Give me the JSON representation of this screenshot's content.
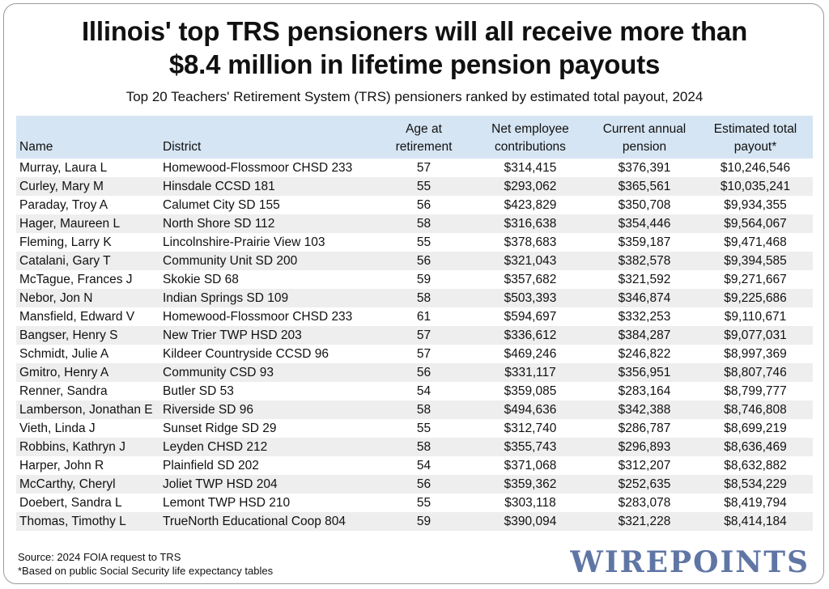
{
  "title_line1": "Illinois' top TRS pensioners will all receive more than",
  "title_line2": "$8.4 million in lifetime pension payouts",
  "subtitle": "Top 20 Teachers' Retirement System (TRS) pensioners ranked by estimated total payout, 2024",
  "footer": {
    "source": "Source: 2024 FOIA request to TRS",
    "note": "*Based on public Social Security life expectancy tables"
  },
  "logo": "WIREPOINTS",
  "colors": {
    "header_bg": "#d6e5f3",
    "stripe": "#eeeeee",
    "logo": "#5f76a5"
  },
  "chart_data": {
    "type": "table",
    "columns": [
      "Name",
      "District",
      "Age at retirement",
      "Net employee contributions",
      "Current annual pension",
      "Estimated total payout*"
    ],
    "rows": [
      [
        "Murray, Laura L",
        "Homewood-Flossmoor CHSD 233",
        "57",
        "$314,415",
        "$376,391",
        "$10,246,546"
      ],
      [
        "Curley, Mary M",
        "Hinsdale CCSD 181",
        "55",
        "$293,062",
        "$365,561",
        "$10,035,241"
      ],
      [
        "Paraday, Troy A",
        "Calumet City SD 155",
        "56",
        "$423,829",
        "$350,708",
        "$9,934,355"
      ],
      [
        "Hager, Maureen L",
        "North Shore SD 112",
        "58",
        "$316,638",
        "$354,446",
        "$9,564,067"
      ],
      [
        "Fleming, Larry K",
        "Lincolnshire-Prairie View 103",
        "55",
        "$378,683",
        "$359,187",
        "$9,471,468"
      ],
      [
        "Catalani, Gary T",
        "Community Unit SD 200",
        "56",
        "$321,043",
        "$382,578",
        "$9,394,585"
      ],
      [
        "McTague, Frances J",
        "Skokie SD 68",
        "59",
        "$357,682",
        "$321,592",
        "$9,271,667"
      ],
      [
        "Nebor, Jon N",
        "Indian Springs SD 109",
        "58",
        "$503,393",
        "$346,874",
        "$9,225,686"
      ],
      [
        "Mansfield, Edward V",
        "Homewood-Flossmoor CHSD 233",
        "61",
        "$594,697",
        "$332,253",
        "$9,110,671"
      ],
      [
        "Bangser, Henry S",
        "New Trier TWP HSD 203",
        "57",
        "$336,612",
        "$384,287",
        "$9,077,031"
      ],
      [
        "Schmidt, Julie A",
        "Kildeer Countryside CCSD 96",
        "57",
        "$469,246",
        "$246,822",
        "$8,997,369"
      ],
      [
        "Gmitro, Henry A",
        "Community CSD 93",
        "56",
        "$331,117",
        "$356,951",
        "$8,807,746"
      ],
      [
        "Renner, Sandra",
        "Butler SD 53",
        "54",
        "$359,085",
        "$283,164",
        "$8,799,777"
      ],
      [
        "Lamberson, Jonathan E",
        "Riverside SD 96",
        "58",
        "$494,636",
        "$342,388",
        "$8,746,808"
      ],
      [
        "Vieth, Linda J",
        "Sunset Ridge SD 29",
        "55",
        "$312,740",
        "$286,787",
        "$8,699,219"
      ],
      [
        "Robbins, Kathryn J",
        "Leyden CHSD 212",
        "58",
        "$355,743",
        "$296,893",
        "$8,636,469"
      ],
      [
        "Harper, John R",
        "Plainfield SD 202",
        "54",
        "$371,068",
        "$312,207",
        "$8,632,882"
      ],
      [
        "McCarthy, Cheryl",
        "Joliet TWP HSD 204",
        "56",
        "$359,362",
        "$252,635",
        "$8,534,229"
      ],
      [
        "Doebert, Sandra L",
        "Lemont TWP HSD 210",
        "55",
        "$303,118",
        "$283,078",
        "$8,419,794"
      ],
      [
        "Thomas, Timothy L",
        "TrueNorth Educational Coop 804",
        "59",
        "$390,094",
        "$321,228",
        "$8,414,184"
      ]
    ]
  }
}
